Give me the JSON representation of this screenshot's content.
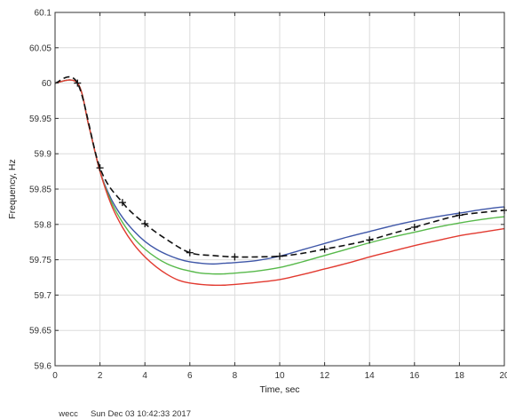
{
  "chart_data": {
    "type": "line",
    "xlabel": "Time, sec",
    "ylabel": "Frequency, Hz",
    "xlim": [
      0,
      20
    ],
    "ylim": [
      59.6,
      60.1
    ],
    "x_ticks": [
      0,
      2,
      4,
      6,
      8,
      10,
      12,
      14,
      16,
      18,
      20
    ],
    "y_ticks": [
      59.6,
      59.65,
      59.7,
      59.75,
      59.8,
      59.85,
      59.9,
      59.95,
      60,
      60.05,
      60.1
    ],
    "x_tick_labels": [
      "0",
      "2",
      "4",
      "6",
      "8",
      "10",
      "12",
      "14",
      "16",
      "18",
      "20"
    ],
    "y_tick_labels": [
      "59.6",
      "59.65",
      "59.7",
      "59.75",
      "59.8",
      "59.85",
      "59.9",
      "59.95",
      "60",
      "60.05",
      "60.1"
    ],
    "grid": true,
    "series": [
      {
        "color": "#3f57a8",
        "style": "solid",
        "x": [
          0,
          1,
          1.5,
          2,
          2.5,
          3,
          3.5,
          4,
          4.5,
          5,
          5.5,
          6,
          6.5,
          7,
          7.5,
          8,
          9,
          10,
          11,
          12,
          13,
          14,
          15,
          16,
          17,
          18,
          19,
          20
        ],
        "y": [
          60,
          60,
          59.94,
          59.875,
          59.836,
          59.81,
          59.791,
          59.776,
          59.765,
          59.757,
          59.751,
          59.747,
          59.745,
          59.744,
          59.745,
          59.746,
          59.749,
          59.755,
          59.764,
          59.773,
          59.782,
          59.79,
          59.798,
          59.805,
          59.811,
          59.816,
          59.821,
          59.825
        ]
      },
      {
        "color": "#57b94a",
        "style": "solid",
        "x": [
          0,
          1,
          1.5,
          2,
          2.5,
          3,
          3.5,
          4,
          4.5,
          5,
          5.5,
          6,
          6.5,
          7,
          7.5,
          8,
          9,
          10,
          11,
          12,
          13,
          14,
          15,
          16,
          17,
          18,
          19,
          20
        ],
        "y": [
          60,
          60,
          59.94,
          59.875,
          59.832,
          59.803,
          59.781,
          59.765,
          59.753,
          59.744,
          59.738,
          59.734,
          59.731,
          59.73,
          59.73,
          59.731,
          59.734,
          59.739,
          59.747,
          59.756,
          59.765,
          59.774,
          59.782,
          59.789,
          59.796,
          59.802,
          59.807,
          59.811
        ]
      },
      {
        "color": "#e23a30",
        "style": "solid",
        "x": [
          0,
          1,
          1.5,
          2,
          2.5,
          3,
          3.5,
          4,
          4.5,
          5,
          5.5,
          6,
          6.5,
          7,
          7.5,
          8,
          9,
          10,
          11,
          12,
          13,
          14,
          15,
          16,
          17,
          18,
          19,
          20
        ],
        "y": [
          60,
          60,
          59.94,
          59.875,
          59.828,
          59.796,
          59.772,
          59.754,
          59.74,
          59.729,
          59.721,
          59.717,
          59.715,
          59.714,
          59.714,
          59.715,
          59.718,
          59.722,
          59.729,
          59.737,
          59.745,
          59.754,
          59.762,
          59.77,
          59.777,
          59.784,
          59.789,
          59.794
        ]
      },
      {
        "color": "#111111",
        "style": "dashed",
        "marker": "plus",
        "x": [
          0,
          1,
          2,
          3,
          4,
          5,
          6,
          7,
          8,
          9,
          10,
          11,
          12,
          13,
          14,
          15,
          16,
          17,
          18,
          19,
          20
        ],
        "y": [
          60,
          60,
          59.88,
          59.831,
          59.801,
          59.778,
          59.76,
          59.756,
          59.754,
          59.754,
          59.755,
          59.759,
          59.765,
          59.771,
          59.778,
          59.787,
          59.796,
          59.805,
          59.813,
          59.817,
          59.82
        ],
        "marker_x": [
          1,
          2,
          3,
          4,
          6,
          8,
          10,
          12,
          14,
          16,
          18,
          20
        ],
        "marker_y": [
          60,
          59.88,
          59.831,
          59.801,
          59.76,
          59.754,
          59.755,
          59.765,
          59.778,
          59.796,
          59.813,
          59.82
        ]
      }
    ]
  },
  "footer": {
    "case_name": "wecc",
    "timestamp": "Sun Dec 03 10:42:33 2017"
  }
}
